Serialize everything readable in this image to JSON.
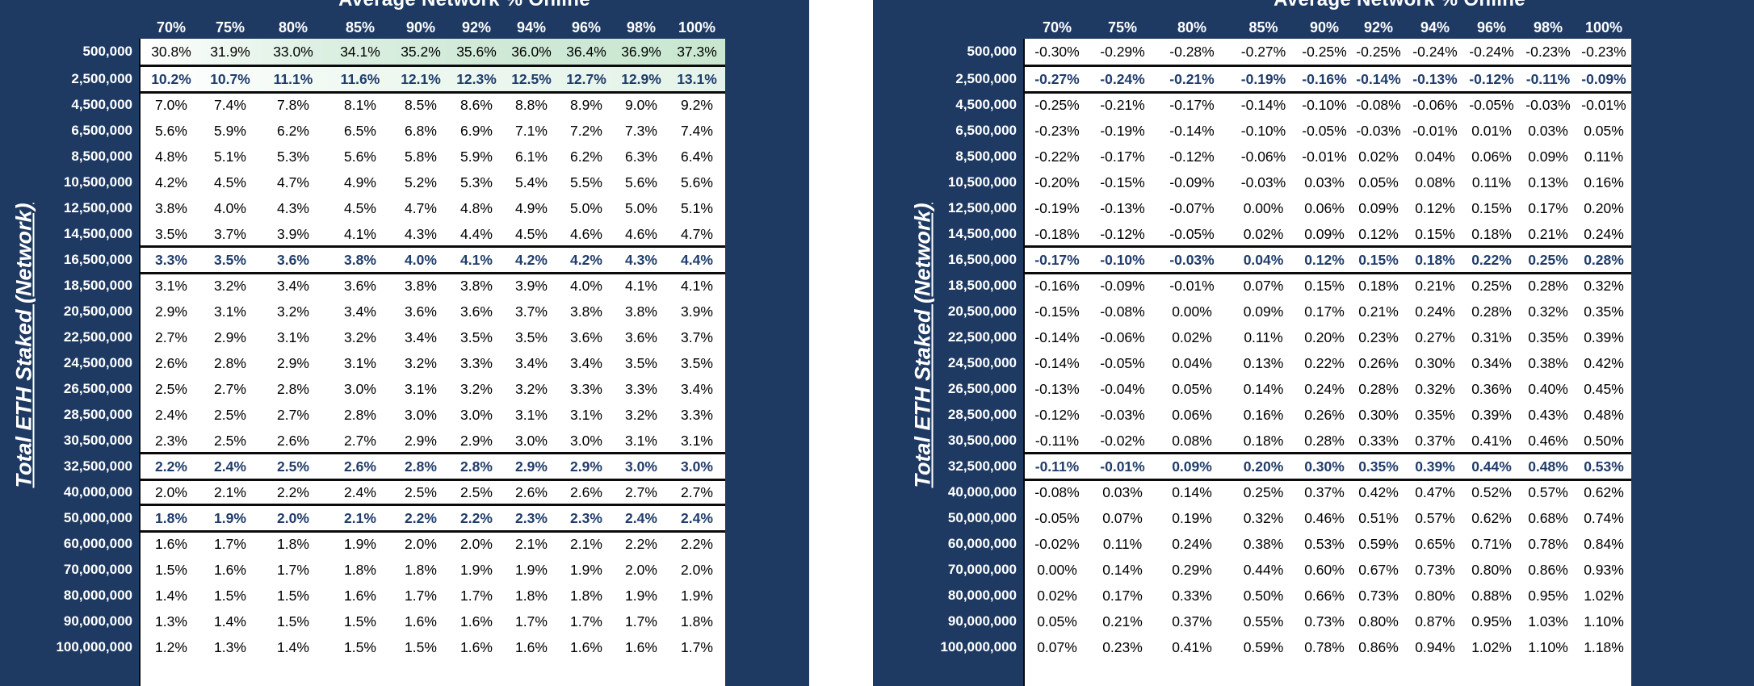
{
  "left": {
    "title": "Average Network % Online",
    "axis_label": "Total ETH Staked (Network)",
    "columns": [
      "70%",
      "75%",
      "80%",
      "85%",
      "90%",
      "92%",
      "94%",
      "96%",
      "98%",
      "100%"
    ],
    "rows": [
      {
        "label": "500,000",
        "values": [
          "30.8%",
          "31.9%",
          "33.0%",
          "34.1%",
          "35.2%",
          "35.6%",
          "36.0%",
          "36.4%",
          "36.9%",
          "37.3%"
        ],
        "highlight": false
      },
      {
        "label": "2,500,000",
        "values": [
          "10.2%",
          "10.7%",
          "11.1%",
          "11.6%",
          "12.1%",
          "12.3%",
          "12.5%",
          "12.7%",
          "12.9%",
          "13.1%"
        ],
        "highlight": true
      },
      {
        "label": "4,500,000",
        "values": [
          "7.0%",
          "7.4%",
          "7.8%",
          "8.1%",
          "8.5%",
          "8.6%",
          "8.8%",
          "8.9%",
          "9.0%",
          "9.2%"
        ],
        "highlight": false
      },
      {
        "label": "6,500,000",
        "values": [
          "5.6%",
          "5.9%",
          "6.2%",
          "6.5%",
          "6.8%",
          "6.9%",
          "7.1%",
          "7.2%",
          "7.3%",
          "7.4%"
        ],
        "highlight": false
      },
      {
        "label": "8,500,000",
        "values": [
          "4.8%",
          "5.1%",
          "5.3%",
          "5.6%",
          "5.8%",
          "5.9%",
          "6.1%",
          "6.2%",
          "6.3%",
          "6.4%"
        ],
        "highlight": false
      },
      {
        "label": "10,500,000",
        "values": [
          "4.2%",
          "4.5%",
          "4.7%",
          "4.9%",
          "5.2%",
          "5.3%",
          "5.4%",
          "5.5%",
          "5.6%",
          "5.6%"
        ],
        "highlight": false
      },
      {
        "label": "12,500,000",
        "values": [
          "3.8%",
          "4.0%",
          "4.3%",
          "4.5%",
          "4.7%",
          "4.8%",
          "4.9%",
          "5.0%",
          "5.0%",
          "5.1%"
        ],
        "highlight": false
      },
      {
        "label": "14,500,000",
        "values": [
          "3.5%",
          "3.7%",
          "3.9%",
          "4.1%",
          "4.3%",
          "4.4%",
          "4.5%",
          "4.6%",
          "4.6%",
          "4.7%"
        ],
        "highlight": false
      },
      {
        "label": "16,500,000",
        "values": [
          "3.3%",
          "3.5%",
          "3.6%",
          "3.8%",
          "4.0%",
          "4.1%",
          "4.2%",
          "4.2%",
          "4.3%",
          "4.4%"
        ],
        "highlight": true
      },
      {
        "label": "18,500,000",
        "values": [
          "3.1%",
          "3.2%",
          "3.4%",
          "3.6%",
          "3.8%",
          "3.8%",
          "3.9%",
          "4.0%",
          "4.1%",
          "4.1%"
        ],
        "highlight": false
      },
      {
        "label": "20,500,000",
        "values": [
          "2.9%",
          "3.1%",
          "3.2%",
          "3.4%",
          "3.6%",
          "3.6%",
          "3.7%",
          "3.8%",
          "3.8%",
          "3.9%"
        ],
        "highlight": false
      },
      {
        "label": "22,500,000",
        "values": [
          "2.7%",
          "2.9%",
          "3.1%",
          "3.2%",
          "3.4%",
          "3.5%",
          "3.5%",
          "3.6%",
          "3.6%",
          "3.7%"
        ],
        "highlight": false
      },
      {
        "label": "24,500,000",
        "values": [
          "2.6%",
          "2.8%",
          "2.9%",
          "3.1%",
          "3.2%",
          "3.3%",
          "3.4%",
          "3.4%",
          "3.5%",
          "3.5%"
        ],
        "highlight": false
      },
      {
        "label": "26,500,000",
        "values": [
          "2.5%",
          "2.7%",
          "2.8%",
          "3.0%",
          "3.1%",
          "3.2%",
          "3.2%",
          "3.3%",
          "3.3%",
          "3.4%"
        ],
        "highlight": false
      },
      {
        "label": "28,500,000",
        "values": [
          "2.4%",
          "2.5%",
          "2.7%",
          "2.8%",
          "3.0%",
          "3.0%",
          "3.1%",
          "3.1%",
          "3.2%",
          "3.3%"
        ],
        "highlight": false
      },
      {
        "label": "30,500,000",
        "values": [
          "2.3%",
          "2.5%",
          "2.6%",
          "2.7%",
          "2.9%",
          "2.9%",
          "3.0%",
          "3.0%",
          "3.1%",
          "3.1%"
        ],
        "highlight": false
      },
      {
        "label": "32,500,000",
        "values": [
          "2.2%",
          "2.4%",
          "2.5%",
          "2.6%",
          "2.8%",
          "2.8%",
          "2.9%",
          "2.9%",
          "3.0%",
          "3.0%"
        ],
        "highlight": true
      },
      {
        "label": "40,000,000",
        "values": [
          "2.0%",
          "2.1%",
          "2.2%",
          "2.4%",
          "2.5%",
          "2.5%",
          "2.6%",
          "2.6%",
          "2.7%",
          "2.7%"
        ],
        "highlight": false
      },
      {
        "label": "50,000,000",
        "values": [
          "1.8%",
          "1.9%",
          "2.0%",
          "2.1%",
          "2.2%",
          "2.2%",
          "2.3%",
          "2.3%",
          "2.4%",
          "2.4%"
        ],
        "highlight": true
      },
      {
        "label": "60,000,000",
        "values": [
          "1.6%",
          "1.7%",
          "1.8%",
          "1.9%",
          "2.0%",
          "2.0%",
          "2.1%",
          "2.1%",
          "2.2%",
          "2.2%"
        ],
        "highlight": false
      },
      {
        "label": "70,000,000",
        "values": [
          "1.5%",
          "1.6%",
          "1.7%",
          "1.8%",
          "1.8%",
          "1.9%",
          "1.9%",
          "1.9%",
          "2.0%",
          "2.0%"
        ],
        "highlight": false
      },
      {
        "label": "80,000,000",
        "values": [
          "1.4%",
          "1.5%",
          "1.5%",
          "1.6%",
          "1.7%",
          "1.7%",
          "1.8%",
          "1.8%",
          "1.9%",
          "1.9%"
        ],
        "highlight": false
      },
      {
        "label": "90,000,000",
        "values": [
          "1.3%",
          "1.4%",
          "1.5%",
          "1.5%",
          "1.6%",
          "1.6%",
          "1.7%",
          "1.7%",
          "1.7%",
          "1.8%"
        ],
        "highlight": false
      },
      {
        "label": "100,000,000",
        "values": [
          "1.2%",
          "1.3%",
          "1.4%",
          "1.5%",
          "1.5%",
          "1.6%",
          "1.6%",
          "1.6%",
          "1.6%",
          "1.7%"
        ],
        "highlight": false
      }
    ]
  },
  "right": {
    "title": "Average Network % Online",
    "axis_label": "Total ETH Staked (Network)",
    "columns": [
      "70%",
      "75%",
      "80%",
      "85%",
      "90%",
      "92%",
      "94%",
      "96%",
      "98%",
      "100%"
    ],
    "rows": [
      {
        "label": "500,000",
        "values": [
          "-0.30%",
          "-0.29%",
          "-0.28%",
          "-0.27%",
          "-0.25%",
          "-0.25%",
          "-0.24%",
          "-0.24%",
          "-0.23%",
          "-0.23%"
        ],
        "highlight": false
      },
      {
        "label": "2,500,000",
        "values": [
          "-0.27%",
          "-0.24%",
          "-0.21%",
          "-0.19%",
          "-0.16%",
          "-0.14%",
          "-0.13%",
          "-0.12%",
          "-0.11%",
          "-0.09%"
        ],
        "highlight": true
      },
      {
        "label": "4,500,000",
        "values": [
          "-0.25%",
          "-0.21%",
          "-0.17%",
          "-0.14%",
          "-0.10%",
          "-0.08%",
          "-0.06%",
          "-0.05%",
          "-0.03%",
          "-0.01%"
        ],
        "highlight": false
      },
      {
        "label": "6,500,000",
        "values": [
          "-0.23%",
          "-0.19%",
          "-0.14%",
          "-0.10%",
          "-0.05%",
          "-0.03%",
          "-0.01%",
          "0.01%",
          "0.03%",
          "0.05%"
        ],
        "highlight": false
      },
      {
        "label": "8,500,000",
        "values": [
          "-0.22%",
          "-0.17%",
          "-0.12%",
          "-0.06%",
          "-0.01%",
          "0.02%",
          "0.04%",
          "0.06%",
          "0.09%",
          "0.11%"
        ],
        "highlight": false
      },
      {
        "label": "10,500,000",
        "values": [
          "-0.20%",
          "-0.15%",
          "-0.09%",
          "-0.03%",
          "0.03%",
          "0.05%",
          "0.08%",
          "0.11%",
          "0.13%",
          "0.16%"
        ],
        "highlight": false
      },
      {
        "label": "12,500,000",
        "values": [
          "-0.19%",
          "-0.13%",
          "-0.07%",
          "0.00%",
          "0.06%",
          "0.09%",
          "0.12%",
          "0.15%",
          "0.17%",
          "0.20%"
        ],
        "highlight": false
      },
      {
        "label": "14,500,000",
        "values": [
          "-0.18%",
          "-0.12%",
          "-0.05%",
          "0.02%",
          "0.09%",
          "0.12%",
          "0.15%",
          "0.18%",
          "0.21%",
          "0.24%"
        ],
        "highlight": false
      },
      {
        "label": "16,500,000",
        "values": [
          "-0.17%",
          "-0.10%",
          "-0.03%",
          "0.04%",
          "0.12%",
          "0.15%",
          "0.18%",
          "0.22%",
          "0.25%",
          "0.28%"
        ],
        "highlight": true
      },
      {
        "label": "18,500,000",
        "values": [
          "-0.16%",
          "-0.09%",
          "-0.01%",
          "0.07%",
          "0.15%",
          "0.18%",
          "0.21%",
          "0.25%",
          "0.28%",
          "0.32%"
        ],
        "highlight": false
      },
      {
        "label": "20,500,000",
        "values": [
          "-0.15%",
          "-0.08%",
          "0.00%",
          "0.09%",
          "0.17%",
          "0.21%",
          "0.24%",
          "0.28%",
          "0.32%",
          "0.35%"
        ],
        "highlight": false
      },
      {
        "label": "22,500,000",
        "values": [
          "-0.14%",
          "-0.06%",
          "0.02%",
          "0.11%",
          "0.20%",
          "0.23%",
          "0.27%",
          "0.31%",
          "0.35%",
          "0.39%"
        ],
        "highlight": false
      },
      {
        "label": "24,500,000",
        "values": [
          "-0.14%",
          "-0.05%",
          "0.04%",
          "0.13%",
          "0.22%",
          "0.26%",
          "0.30%",
          "0.34%",
          "0.38%",
          "0.42%"
        ],
        "highlight": false
      },
      {
        "label": "26,500,000",
        "values": [
          "-0.13%",
          "-0.04%",
          "0.05%",
          "0.14%",
          "0.24%",
          "0.28%",
          "0.32%",
          "0.36%",
          "0.40%",
          "0.45%"
        ],
        "highlight": false
      },
      {
        "label": "28,500,000",
        "values": [
          "-0.12%",
          "-0.03%",
          "0.06%",
          "0.16%",
          "0.26%",
          "0.30%",
          "0.35%",
          "0.39%",
          "0.43%",
          "0.48%"
        ],
        "highlight": false
      },
      {
        "label": "30,500,000",
        "values": [
          "-0.11%",
          "-0.02%",
          "0.08%",
          "0.18%",
          "0.28%",
          "0.33%",
          "0.37%",
          "0.41%",
          "0.46%",
          "0.50%"
        ],
        "highlight": false
      },
      {
        "label": "32,500,000",
        "values": [
          "-0.11%",
          "-0.01%",
          "0.09%",
          "0.20%",
          "0.30%",
          "0.35%",
          "0.39%",
          "0.44%",
          "0.48%",
          "0.53%"
        ],
        "highlight": true
      },
      {
        "label": "40,000,000",
        "values": [
          "-0.08%",
          "0.03%",
          "0.14%",
          "0.25%",
          "0.37%",
          "0.42%",
          "0.47%",
          "0.52%",
          "0.57%",
          "0.62%"
        ],
        "highlight": false
      },
      {
        "label": "50,000,000",
        "values": [
          "-0.05%",
          "0.07%",
          "0.19%",
          "0.32%",
          "0.46%",
          "0.51%",
          "0.57%",
          "0.62%",
          "0.68%",
          "0.74%"
        ],
        "highlight": false
      },
      {
        "label": "60,000,000",
        "values": [
          "-0.02%",
          "0.11%",
          "0.24%",
          "0.38%",
          "0.53%",
          "0.59%",
          "0.65%",
          "0.71%",
          "0.78%",
          "0.84%"
        ],
        "highlight": false
      },
      {
        "label": "70,000,000",
        "values": [
          "0.00%",
          "0.14%",
          "0.29%",
          "0.44%",
          "0.60%",
          "0.67%",
          "0.73%",
          "0.80%",
          "0.86%",
          "0.93%"
        ],
        "highlight": false
      },
      {
        "label": "80,000,000",
        "values": [
          "0.02%",
          "0.17%",
          "0.33%",
          "0.50%",
          "0.66%",
          "0.73%",
          "0.80%",
          "0.88%",
          "0.95%",
          "1.02%"
        ],
        "highlight": false
      },
      {
        "label": "90,000,000",
        "values": [
          "0.05%",
          "0.21%",
          "0.37%",
          "0.55%",
          "0.73%",
          "0.80%",
          "0.87%",
          "0.95%",
          "1.03%",
          "1.10%"
        ],
        "highlight": false
      },
      {
        "label": "100,000,000",
        "values": [
          "0.07%",
          "0.23%",
          "0.41%",
          "0.59%",
          "0.78%",
          "0.86%",
          "0.94%",
          "1.02%",
          "1.10%",
          "1.18%"
        ],
        "highlight": false
      }
    ]
  }
}
